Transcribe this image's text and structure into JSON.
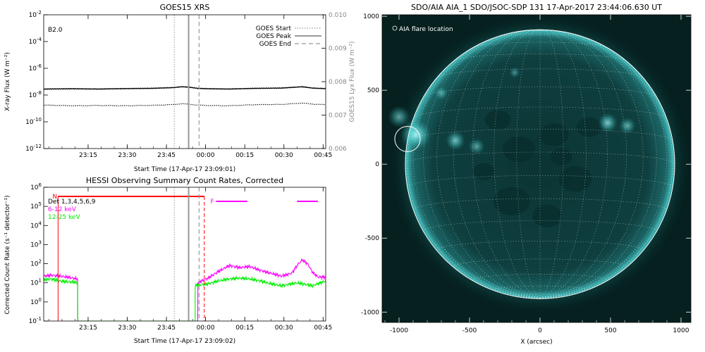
{
  "chart_data": [
    {
      "type": "line",
      "title": "GOES15 XRS",
      "xlabel": "Start Time (17-Apr-17 23:09:01)",
      "ylabel": "X-ray Flux (W m⁻²)",
      "ylabel_right": "GOES15 Lyx Flux (W m⁻²)",
      "annotation": "B2.0",
      "x_ticks": [
        "23:15",
        "23:30",
        "23:45",
        "00:00",
        "00:15",
        "00:30",
        "00:45"
      ],
      "x_range_minutes": [
        -11,
        97
      ],
      "yscale": "log",
      "ylim_exp": [
        -12,
        -2
      ],
      "y_tick_exponents": [
        -12,
        -10,
        -8,
        -6,
        -4,
        -2
      ],
      "y_right_ticks": [
        "0.006",
        "0.007",
        "0.008",
        "0.009",
        "0.010"
      ],
      "y_right_range": [
        0.006,
        0.01
      ],
      "legend": [
        {
          "label": "GOES Start",
          "style": "dotted"
        },
        {
          "label": "GOES Peak",
          "style": "solid"
        },
        {
          "label": "GOES End",
          "style": "dashed"
        }
      ],
      "legend_position": "top-right",
      "event_lines_minutes": {
        "start": 39,
        "peak": 44.5,
        "end": 48.5
      },
      "series": [
        {
          "style": "solid",
          "x": [
            -11,
            0,
            10,
            20,
            30,
            38,
            42,
            45,
            48,
            52,
            60,
            70,
            80,
            88,
            92,
            97
          ],
          "log_values": [
            -7.55,
            -7.53,
            -7.55,
            -7.52,
            -7.5,
            -7.45,
            -7.38,
            -7.42,
            -7.5,
            -7.53,
            -7.55,
            -7.5,
            -7.48,
            -7.38,
            -7.48,
            -7.52
          ]
        },
        {
          "style": "dotted",
          "x": [
            -11,
            0,
            10,
            20,
            30,
            38,
            42,
            45,
            48,
            52,
            60,
            70,
            80,
            88,
            92,
            97
          ],
          "log_values": [
            -8.75,
            -8.8,
            -8.78,
            -8.8,
            -8.77,
            -8.72,
            -8.65,
            -8.7,
            -8.75,
            -8.78,
            -8.8,
            -8.72,
            -8.7,
            -8.6,
            -8.68,
            -8.72
          ]
        }
      ]
    },
    {
      "type": "line",
      "title": "HESSI Observing Summary Count Rates, Corrected",
      "xlabel": "Start Time (17-Apr-17 23:09:02)",
      "ylabel": "Corrected Count Rate (s⁻¹ detector⁻¹)",
      "x_ticks": [
        "23:15",
        "23:30",
        "23:45",
        "00:00",
        "00:15",
        "00:30",
        "00:45"
      ],
      "x_range_minutes": [
        -11,
        97
      ],
      "yscale": "log",
      "ylim_exp": [
        -1,
        6
      ],
      "y_tick_exponents": [
        -1,
        0,
        1,
        2,
        3,
        4,
        5,
        6
      ],
      "legend": [
        {
          "label": "Det 1,3,4,5,6,9",
          "color": "#000000"
        },
        {
          "label": "6-12 keV",
          "color": "#ff00ff"
        },
        {
          "label": "12-25 keV",
          "color": "#00ee00"
        }
      ],
      "legend_position": "top-left",
      "markers": {
        "N": {
          "label": "N",
          "color": "#ff0000",
          "start": -5.5,
          "end": 50.5
        },
        "F": {
          "label": "F",
          "color": "#ff00ff",
          "segments": [
            [
              55,
              67
            ],
            [
              86,
              94
            ]
          ]
        }
      },
      "event_lines_minutes": {
        "start": 39,
        "peak": 44.5,
        "end": 48.5
      },
      "series": [
        {
          "name": "6-12 keV",
          "color": "#ff00ff",
          "x": [
            -11,
            -8,
            -5,
            -2,
            0,
            2,
            2.01,
            48,
            48.01,
            52,
            56,
            60,
            64,
            68,
            72,
            76,
            80,
            84,
            86,
            88,
            90,
            92,
            94,
            97
          ],
          "log_values": [
            1.35,
            1.4,
            1.35,
            1.3,
            1.25,
            1.2,
            -1,
            -1,
            1.0,
            1.25,
            1.6,
            1.9,
            1.8,
            1.85,
            1.65,
            1.5,
            1.35,
            1.5,
            1.9,
            2.2,
            2.0,
            1.55,
            1.3,
            1.3
          ]
        },
        {
          "name": "12-25 keV",
          "color": "#00ee00",
          "x": [
            -11,
            -8,
            -5,
            -2,
            0,
            2,
            2.01,
            47,
            47.01,
            52,
            56,
            60,
            64,
            68,
            72,
            76,
            80,
            84,
            86,
            88,
            90,
            92,
            94,
            97
          ],
          "log_values": [
            1.15,
            1.2,
            1.1,
            1.05,
            1.05,
            1.0,
            -1,
            -1,
            0.85,
            0.95,
            1.1,
            1.2,
            1.25,
            1.2,
            1.1,
            0.95,
            0.85,
            0.95,
            1.0,
            0.95,
            0.9,
            0.85,
            0.95,
            1.1
          ]
        }
      ]
    },
    {
      "type": "image",
      "title": "SDO/AIA AIA_1 SDO/JSOC-SDP 131 17-Apr-2017 23:44:06.630 UT",
      "xlabel": "X (arcsec)",
      "annotation": "AIA flare location",
      "x_ticks": [
        -1000,
        -500,
        0,
        500,
        1000
      ],
      "y_ticks": [
        -1000,
        -500,
        0,
        500,
        1000
      ],
      "xlim": [
        -1120,
        1070
      ],
      "ylim": [
        -1070,
        1010
      ],
      "solar_radius_arcsec": 955,
      "flare_location_arcsec": [
        -940,
        170
      ],
      "flare_circle_radius_arcsec": 90,
      "colors": {
        "disk": "#0d3a3a",
        "limb": "#2aa0a0",
        "bright": "#7fffff",
        "background": "#05201f"
      }
    }
  ]
}
